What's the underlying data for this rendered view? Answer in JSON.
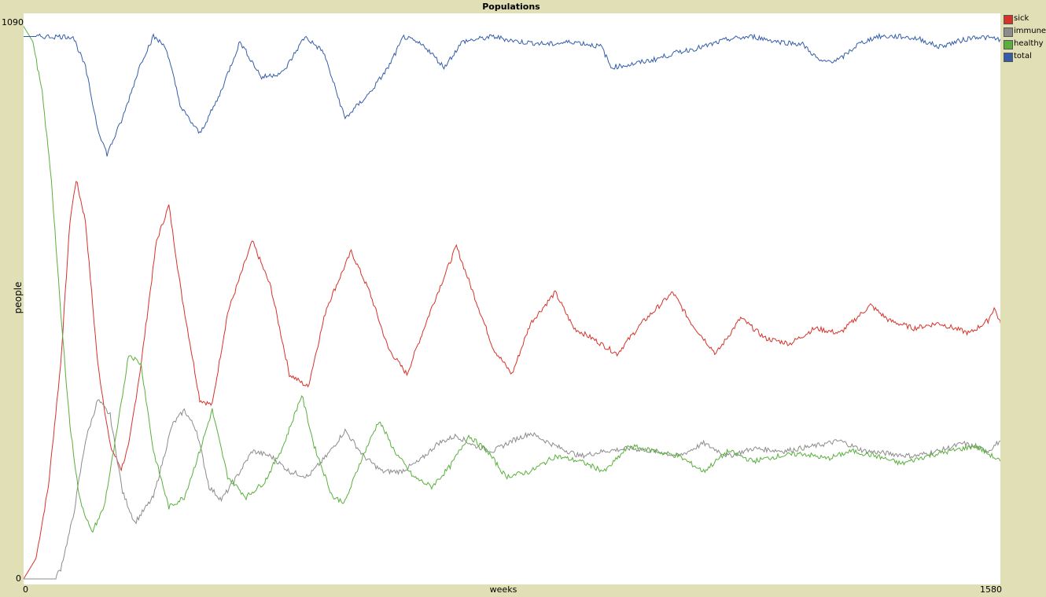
{
  "window": {
    "title": "Populations"
  },
  "colors": {
    "background": "#e0dfb6",
    "plot_bg": "#ffffff",
    "sick": "#d73229",
    "immune": "#8c8c8c",
    "healthy": "#59b03c",
    "total": "#345da9"
  },
  "chart_data": {
    "type": "line",
    "title": "Populations",
    "xlabel": "weeks",
    "ylabel": "people",
    "xlim": [
      0,
      1580
    ],
    "ylim": [
      0,
      1090
    ],
    "x_tick_labels": [
      "0",
      "1580"
    ],
    "y_tick_labels": [
      "0",
      "1090"
    ],
    "grid": false,
    "legend": "top-right",
    "series": [
      {
        "name": "sick",
        "color": "#d73229",
        "points": [
          [
            0,
            0
          ],
          [
            20,
            40
          ],
          [
            40,
            180
          ],
          [
            60,
            420
          ],
          [
            75,
            700
          ],
          [
            85,
            780
          ],
          [
            100,
            700
          ],
          [
            120,
            420
          ],
          [
            140,
            260
          ],
          [
            158,
            215
          ],
          [
            170,
            260
          ],
          [
            190,
            420
          ],
          [
            215,
            660
          ],
          [
            235,
            730
          ],
          [
            255,
            560
          ],
          [
            285,
            350
          ],
          [
            305,
            340
          ],
          [
            330,
            520
          ],
          [
            370,
            660
          ],
          [
            400,
            570
          ],
          [
            430,
            400
          ],
          [
            460,
            375
          ],
          [
            490,
            530
          ],
          [
            530,
            640
          ],
          [
            560,
            560
          ],
          [
            590,
            450
          ],
          [
            620,
            400
          ],
          [
            660,
            530
          ],
          [
            700,
            650
          ],
          [
            730,
            550
          ],
          [
            760,
            450
          ],
          [
            790,
            400
          ],
          [
            820,
            500
          ],
          [
            860,
            560
          ],
          [
            890,
            490
          ],
          [
            920,
            470
          ],
          [
            960,
            440
          ],
          [
            1000,
            500
          ],
          [
            1050,
            560
          ],
          [
            1080,
            500
          ],
          [
            1120,
            440
          ],
          [
            1160,
            510
          ],
          [
            1200,
            470
          ],
          [
            1240,
            460
          ],
          [
            1280,
            490
          ],
          [
            1320,
            480
          ],
          [
            1370,
            535
          ],
          [
            1400,
            505
          ],
          [
            1440,
            490
          ],
          [
            1480,
            500
          ],
          [
            1530,
            480
          ],
          [
            1560,
            505
          ],
          [
            1570,
            530
          ],
          [
            1580,
            500
          ],
          [
            1580,
            500
          ]
        ]
      },
      {
        "name": "immune",
        "color": "#8c8c8c",
        "points": [
          [
            0,
            0
          ],
          [
            50,
            0
          ],
          [
            60,
            20
          ],
          [
            80,
            120
          ],
          [
            100,
            270
          ],
          [
            120,
            350
          ],
          [
            140,
            320
          ],
          [
            160,
            170
          ],
          [
            180,
            110
          ],
          [
            210,
            160
          ],
          [
            240,
            300
          ],
          [
            260,
            330
          ],
          [
            280,
            290
          ],
          [
            300,
            180
          ],
          [
            320,
            155
          ],
          [
            340,
            190
          ],
          [
            370,
            250
          ],
          [
            400,
            240
          ],
          [
            430,
            210
          ],
          [
            460,
            200
          ],
          [
            490,
            240
          ],
          [
            520,
            290
          ],
          [
            550,
            240
          ],
          [
            580,
            210
          ],
          [
            610,
            210
          ],
          [
            640,
            230
          ],
          [
            670,
            265
          ],
          [
            700,
            280
          ],
          [
            730,
            260
          ],
          [
            760,
            250
          ],
          [
            790,
            270
          ],
          [
            820,
            285
          ],
          [
            860,
            260
          ],
          [
            900,
            240
          ],
          [
            940,
            250
          ],
          [
            980,
            255
          ],
          [
            1020,
            250
          ],
          [
            1060,
            240
          ],
          [
            1100,
            265
          ],
          [
            1140,
            240
          ],
          [
            1180,
            255
          ],
          [
            1230,
            250
          ],
          [
            1280,
            260
          ],
          [
            1320,
            270
          ],
          [
            1360,
            250
          ],
          [
            1400,
            245
          ],
          [
            1440,
            240
          ],
          [
            1480,
            250
          ],
          [
            1520,
            265
          ],
          [
            1560,
            250
          ],
          [
            1580,
            270
          ]
        ]
      },
      {
        "name": "healthy",
        "color": "#59b03c",
        "points": [
          [
            0,
            1080
          ],
          [
            15,
            1050
          ],
          [
            30,
            950
          ],
          [
            45,
            780
          ],
          [
            60,
            520
          ],
          [
            75,
            300
          ],
          [
            90,
            160
          ],
          [
            110,
            90
          ],
          [
            130,
            140
          ],
          [
            150,
            280
          ],
          [
            170,
            440
          ],
          [
            190,
            420
          ],
          [
            210,
            250
          ],
          [
            235,
            140
          ],
          [
            260,
            160
          ],
          [
            285,
            250
          ],
          [
            305,
            330
          ],
          [
            330,
            200
          ],
          [
            360,
            160
          ],
          [
            390,
            190
          ],
          [
            420,
            260
          ],
          [
            450,
            360
          ],
          [
            470,
            260
          ],
          [
            500,
            160
          ],
          [
            520,
            150
          ],
          [
            545,
            230
          ],
          [
            575,
            310
          ],
          [
            600,
            250
          ],
          [
            630,
            200
          ],
          [
            660,
            180
          ],
          [
            690,
            220
          ],
          [
            720,
            280
          ],
          [
            750,
            250
          ],
          [
            780,
            200
          ],
          [
            820,
            210
          ],
          [
            860,
            240
          ],
          [
            900,
            230
          ],
          [
            940,
            210
          ],
          [
            980,
            260
          ],
          [
            1020,
            250
          ],
          [
            1060,
            240
          ],
          [
            1100,
            210
          ],
          [
            1140,
            250
          ],
          [
            1180,
            230
          ],
          [
            1220,
            240
          ],
          [
            1260,
            245
          ],
          [
            1300,
            235
          ],
          [
            1340,
            250
          ],
          [
            1380,
            240
          ],
          [
            1420,
            225
          ],
          [
            1460,
            240
          ],
          [
            1500,
            250
          ],
          [
            1540,
            260
          ],
          [
            1580,
            230
          ]
        ]
      },
      {
        "name": "total",
        "color": "#345da9",
        "points": [
          [
            0,
            1060
          ],
          [
            80,
            1060
          ],
          [
            100,
            1000
          ],
          [
            120,
            880
          ],
          [
            135,
            830
          ],
          [
            160,
            900
          ],
          [
            190,
            1010
          ],
          [
            210,
            1060
          ],
          [
            230,
            1040
          ],
          [
            255,
            920
          ],
          [
            285,
            870
          ],
          [
            315,
            940
          ],
          [
            350,
            1050
          ],
          [
            385,
            980
          ],
          [
            420,
            990
          ],
          [
            455,
            1060
          ],
          [
            485,
            1030
          ],
          [
            520,
            900
          ],
          [
            560,
            950
          ],
          [
            590,
            1000
          ],
          [
            615,
            1060
          ],
          [
            650,
            1040
          ],
          [
            680,
            1000
          ],
          [
            710,
            1050
          ],
          [
            760,
            1060
          ],
          [
            800,
            1050
          ],
          [
            850,
            1045
          ],
          [
            890,
            1050
          ],
          [
            935,
            1040
          ],
          [
            950,
            1000
          ],
          [
            980,
            1005
          ],
          [
            1020,
            1015
          ],
          [
            1060,
            1030
          ],
          [
            1100,
            1040
          ],
          [
            1140,
            1055
          ],
          [
            1180,
            1060
          ],
          [
            1220,
            1050
          ],
          [
            1260,
            1045
          ],
          [
            1290,
            1010
          ],
          [
            1320,
            1015
          ],
          [
            1350,
            1045
          ],
          [
            1380,
            1060
          ],
          [
            1420,
            1060
          ],
          [
            1450,
            1055
          ],
          [
            1480,
            1040
          ],
          [
            1510,
            1050
          ],
          [
            1540,
            1060
          ],
          [
            1580,
            1055
          ]
        ]
      }
    ]
  }
}
